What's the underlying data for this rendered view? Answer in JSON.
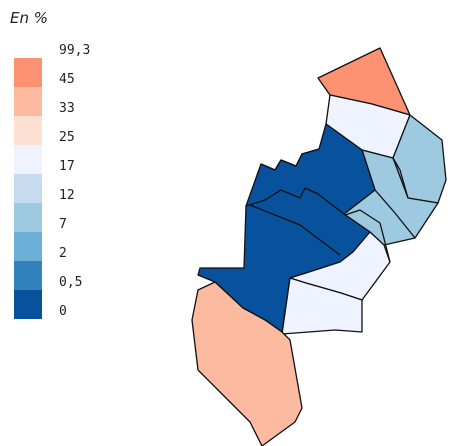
{
  "legend": {
    "title": "En %",
    "classes": [
      {
        "label": "99,3",
        "color": "#fc9272"
      },
      {
        "label": "45",
        "color": "#fcbba1"
      },
      {
        "label": "33",
        "color": "#fde0d2"
      },
      {
        "label": "25",
        "color": "#eff3ff"
      },
      {
        "label": "17",
        "color": "#c6dbef"
      },
      {
        "label": "12",
        "color": "#9ecae1"
      },
      {
        "label": "7",
        "color": "#6baed6"
      },
      {
        "label": "2",
        "color": "#3182bd"
      },
      {
        "label": "0,5",
        "color": "#08519c"
      },
      {
        "label": "0",
        "color": ""
      }
    ]
  },
  "map": {
    "border_color": "#111111",
    "fills": {
      "top_triangle": "#fc9272",
      "north_light": "#eff3ff",
      "east_upper": "#9ecae1",
      "east_lower": "#9ecae1",
      "center_blue": "#08519c",
      "southeast_light": "#eff3ff",
      "south_center": "#eff3ff",
      "south_peach": "#fcbba1"
    }
  }
}
